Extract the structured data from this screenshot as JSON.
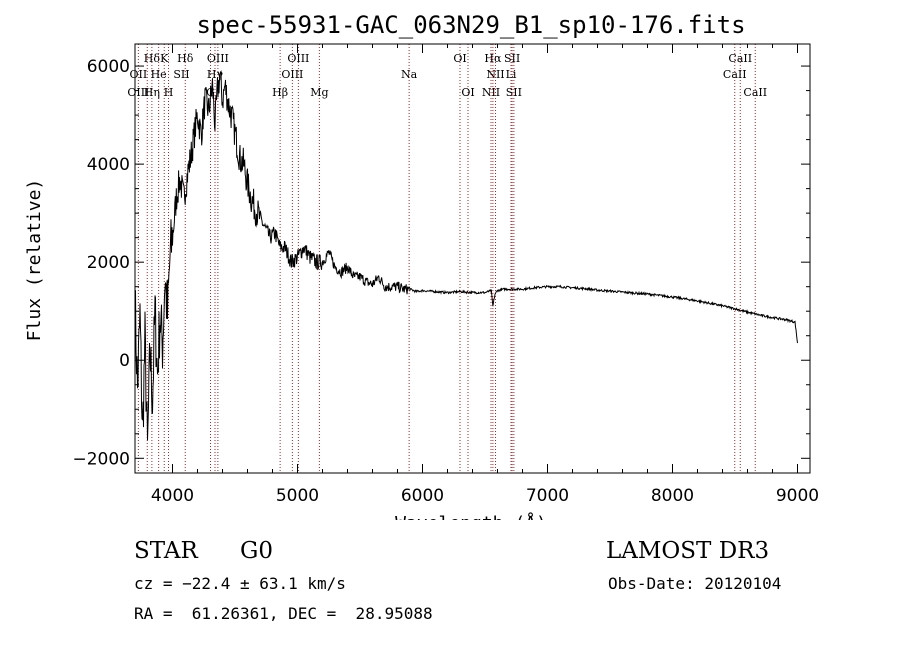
{
  "chart_data": {
    "type": "line",
    "title": "spec-55931-GAC_063N29_B1_sp10-176.fits",
    "xlabel": "Wavelength (Å)",
    "ylabel": "Flux (relative)",
    "xlim": [
      3700,
      9100
    ],
    "ylim": [
      -2300,
      6450
    ],
    "x_ticks": [
      4000,
      5000,
      6000,
      7000,
      8000,
      9000
    ],
    "y_ticks": [
      -2000,
      0,
      2000,
      4000,
      6000
    ],
    "grid": false,
    "series": [
      {
        "name": "flux",
        "x": [
          3700,
          3720,
          3740,
          3760,
          3780,
          3800,
          3820,
          3840,
          3860,
          3880,
          3900,
          3920,
          3940,
          3960,
          3980,
          4000,
          4030,
          4060,
          4090,
          4120,
          4150,
          4180,
          4200,
          4230,
          4260,
          4290,
          4320,
          4340,
          4360,
          4380,
          4400,
          4420,
          4450,
          4480,
          4510,
          4540,
          4570,
          4600,
          4630,
          4660,
          4700,
          4740,
          4780,
          4820,
          4860,
          4900,
          4950,
          5000,
          5050,
          5100,
          5150,
          5200,
          5250,
          5300,
          5350,
          5400,
          5450,
          5500,
          5550,
          5600,
          5650,
          5700,
          5750,
          5800,
          5850,
          5900,
          5950,
          6000,
          6100,
          6200,
          6300,
          6400,
          6500,
          6550,
          6563,
          6580,
          6600,
          6650,
          6700,
          6800,
          6900,
          7000,
          7100,
          7200,
          7300,
          7400,
          7500,
          7600,
          7700,
          7800,
          7900,
          8000,
          8100,
          8200,
          8300,
          8400,
          8500,
          8600,
          8700,
          8800,
          8900,
          8980,
          9000
        ],
        "values": [
          1200,
          -600,
          900,
          -1500,
          400,
          -1900,
          200,
          -800,
          1000,
          -300,
          900,
          300,
          1700,
          900,
          2100,
          2500,
          3300,
          3700,
          3300,
          3800,
          4200,
          4700,
          5000,
          4600,
          5300,
          5100,
          5600,
          4800,
          5500,
          5800,
          5300,
          5600,
          5200,
          4900,
          4500,
          4100,
          4000,
          3600,
          3300,
          3100,
          2900,
          2700,
          2500,
          2600,
          2300,
          2300,
          2000,
          2100,
          2300,
          2100,
          2000,
          2000,
          2200,
          1900,
          1800,
          1900,
          1700,
          1700,
          1600,
          1550,
          1700,
          1500,
          1500,
          1500,
          1450,
          1450,
          1400,
          1420,
          1400,
          1380,
          1400,
          1380,
          1380,
          1420,
          1100,
          1350,
          1420,
          1450,
          1450,
          1450,
          1480,
          1500,
          1500,
          1480,
          1460,
          1430,
          1410,
          1390,
          1370,
          1350,
          1320,
          1290,
          1250,
          1210,
          1160,
          1110,
          1050,
          980,
          920,
          870,
          830,
          780,
          350
        ]
      }
    ],
    "line_annotations": [
      {
        "label": "Hδ",
        "wavelength": 3835,
        "row": 1
      },
      {
        "label": "K",
        "wavelength": 3934,
        "row": 1
      },
      {
        "label": "Hδ",
        "wavelength": 4102,
        "row": 1
      },
      {
        "label": "OIII",
        "wavelength": 4363,
        "row": 1
      },
      {
        "label": "OIII",
        "wavelength": 5007,
        "row": 1
      },
      {
        "label": "OI",
        "wavelength": 6300,
        "row": 1
      },
      {
        "label": "Hα",
        "wavelength": 6563,
        "row": 1
      },
      {
        "label": "SII",
        "wavelength": 6717,
        "row": 1
      },
      {
        "label": "CaII",
        "wavelength": 8542,
        "row": 1
      },
      {
        "label": "OII",
        "wavelength": 3727,
        "row": 2
      },
      {
        "label": "He",
        "wavelength": 3889,
        "row": 2
      },
      {
        "label": "SII",
        "wavelength": 4072,
        "row": 2
      },
      {
        "label": "Hγ",
        "wavelength": 4340,
        "row": 2
      },
      {
        "label": "OIII",
        "wavelength": 4959,
        "row": 2
      },
      {
        "label": "Na",
        "wavelength": 5893,
        "row": 2
      },
      {
        "label": "NII",
        "wavelength": 6584,
        "row": 2
      },
      {
        "label": "Li",
        "wavelength": 6708,
        "row": 2
      },
      {
        "label": "CaII",
        "wavelength": 8498,
        "row": 2
      },
      {
        "label": "OIII",
        "wavelength": 3727,
        "row": 3
      },
      {
        "label": "Hη",
        "wavelength": 3835,
        "row": 3
      },
      {
        "label": "H",
        "wavelength": 3968,
        "row": 3
      },
      {
        "label": "G",
        "wavelength": 4304,
        "row": 3
      },
      {
        "label": "Hβ",
        "wavelength": 4861,
        "row": 3
      },
      {
        "label": "Mg",
        "wavelength": 5175,
        "row": 3
      },
      {
        "label": "OI",
        "wavelength": 6364,
        "row": 3
      },
      {
        "label": "NII",
        "wavelength": 6548,
        "row": 3
      },
      {
        "label": "SII",
        "wavelength": 6731,
        "row": 3
      },
      {
        "label": "CaII",
        "wavelength": 8662,
        "row": 3
      }
    ],
    "marker_lines": [
      3727,
      3798,
      3835,
      3889,
      3934,
      3968,
      4102,
      4304,
      4340,
      4363,
      4861,
      4959,
      5007,
      5175,
      5893,
      6300,
      6364,
      6548,
      6563,
      6584,
      6708,
      6717,
      6731,
      8498,
      8542,
      8662
    ],
    "marker_color": "#b22222"
  },
  "info": {
    "object_class": "STAR",
    "subclass": "G0",
    "survey": "LAMOST DR3",
    "redshift_text": "cz = −22.4 ± 63.1 km/s",
    "obs_date": "Obs-Date: 20120104",
    "coords": "RA =  61.26361, DEC =  28.95088"
  }
}
